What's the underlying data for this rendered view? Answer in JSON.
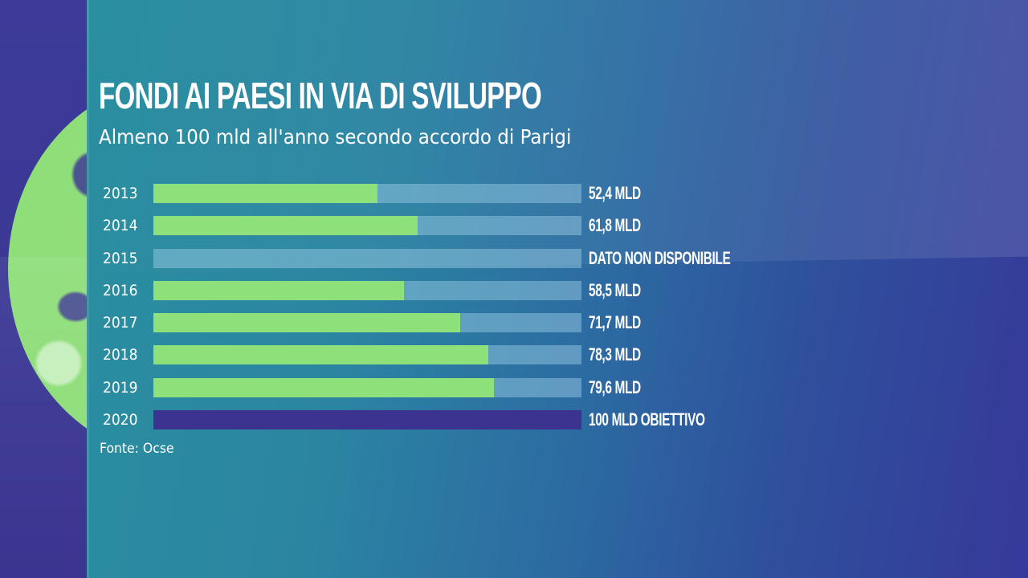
{
  "title": "FONDI AI PAESI IN VIA DI SVILUPPO",
  "subtitle": "Almeno 100 mld all'anno secondo accordo di Parigi",
  "source": "Fonte: Ocse",
  "colors": {
    "bar_fill": "#8ee07a",
    "bar_track": "#7fb6d0",
    "target_bar": "#3b338f",
    "text": "#ffffff"
  },
  "rows": [
    {
      "year": "2013",
      "value": 52.4,
      "label": "52,4 MLD",
      "type": "actual"
    },
    {
      "year": "2014",
      "value": 61.8,
      "label": "61,8 MLD",
      "type": "actual"
    },
    {
      "year": "2015",
      "value": null,
      "label": "DATO NON DISPONIBILE",
      "type": "missing"
    },
    {
      "year": "2016",
      "value": 58.5,
      "label": "58,5 MLD",
      "type": "actual"
    },
    {
      "year": "2017",
      "value": 71.7,
      "label": "71,7 MLD",
      "type": "actual"
    },
    {
      "year": "2018",
      "value": 78.3,
      "label": "78,3 MLD",
      "type": "actual"
    },
    {
      "year": "2019",
      "value": 79.6,
      "label": "79,6 MLD",
      "type": "actual"
    },
    {
      "year": "2020",
      "value": 100,
      "label": "100 MLD OBIETTIVO",
      "type": "target"
    }
  ],
  "chart_data": {
    "type": "bar",
    "orientation": "horizontal",
    "title": "FONDI AI PAESI IN VIA DI SVILUPPO",
    "subtitle": "Almeno 100 mld all'anno secondo accordo di Parigi",
    "categories": [
      "2013",
      "2014",
      "2015",
      "2016",
      "2017",
      "2018",
      "2019",
      "2020"
    ],
    "values": [
      52.4,
      61.8,
      null,
      58.5,
      71.7,
      78.3,
      79.6,
      100
    ],
    "data_labels": [
      "52,4 MLD",
      "61,8 MLD",
      "DATO NON DISPONIBILE",
      "58,5 MLD",
      "71,7 MLD",
      "78,3 MLD",
      "79,6 MLD",
      "100 MLD OBIETTIVO"
    ],
    "unit": "miliardi (MLD)",
    "xlim": [
      0,
      100
    ],
    "xlabel": "",
    "ylabel": "",
    "grid": false,
    "legend": null,
    "annotations": [
      "2020: 100 MLD OBIETTIVO (target)",
      "2015: DATO NON DISPONIBILE"
    ],
    "source": "Fonte: Ocse"
  }
}
